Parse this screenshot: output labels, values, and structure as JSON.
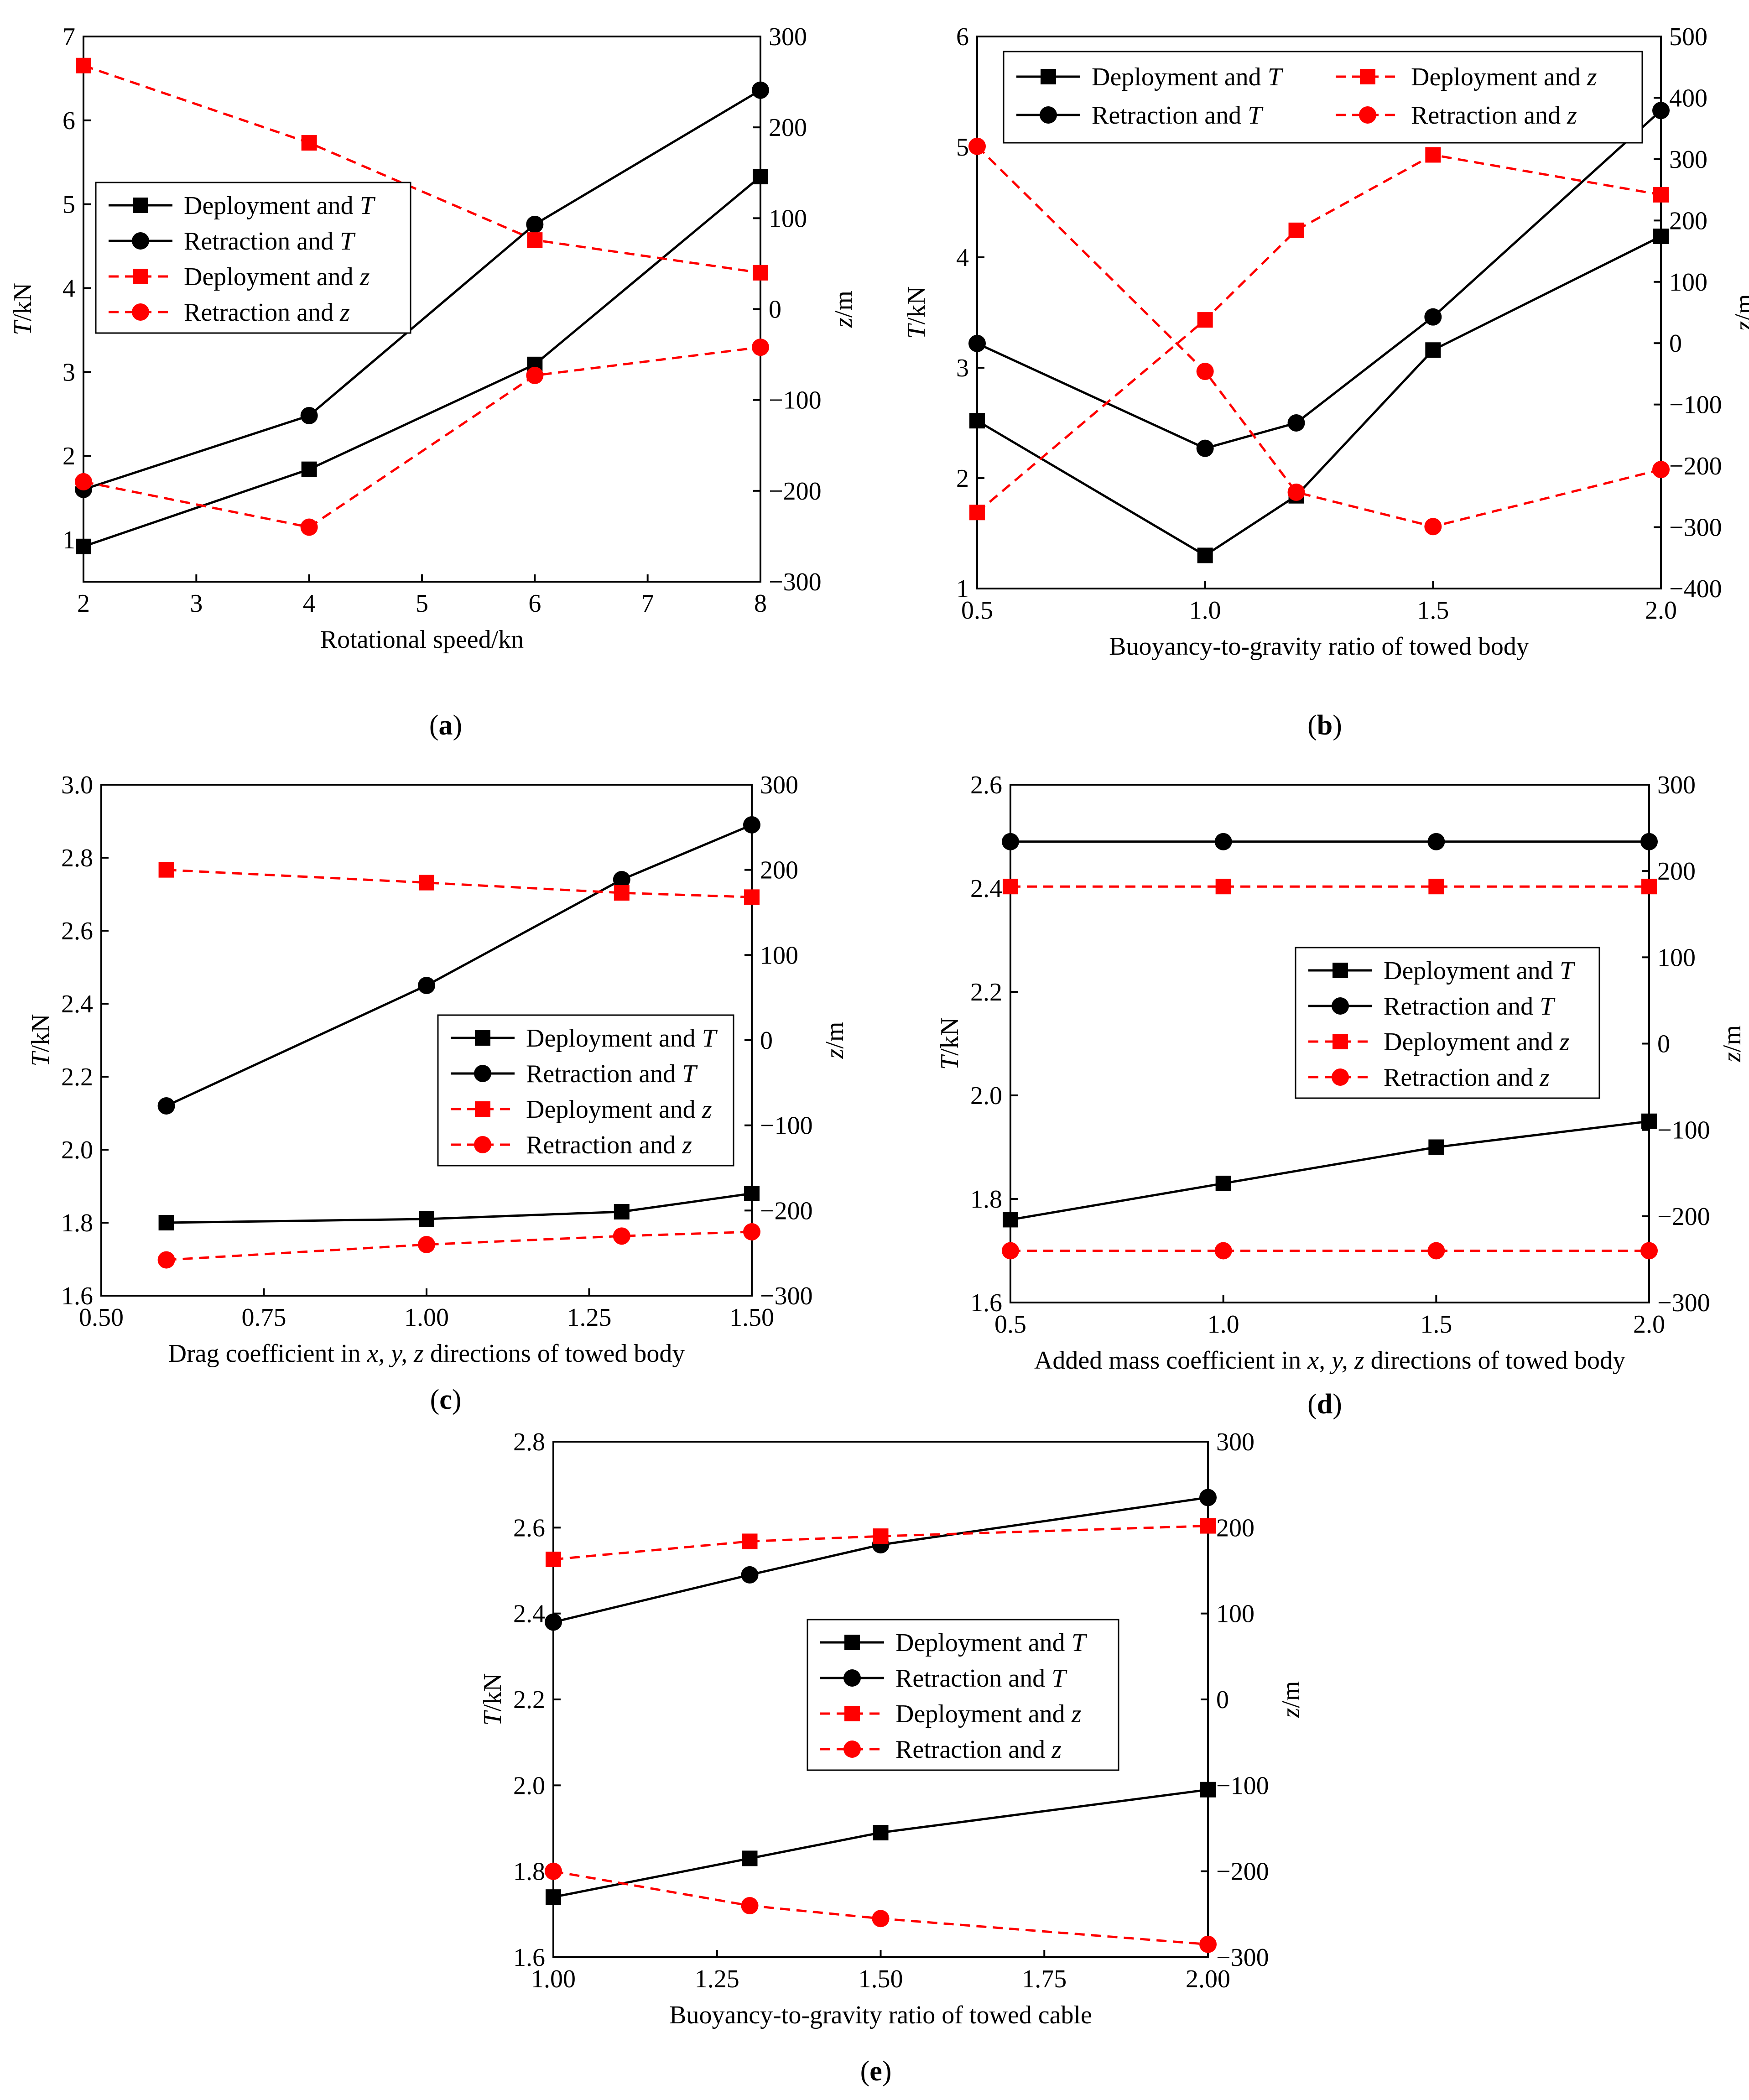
{
  "colors": {
    "black": "#000000",
    "red": "#ff0000"
  },
  "legend_entries": [
    {
      "prefix": "Deployment and ",
      "var": "T",
      "color": "#000000",
      "dash": false,
      "marker": "square"
    },
    {
      "prefix": "Retraction and ",
      "var": "T",
      "color": "#000000",
      "dash": false,
      "marker": "circle"
    },
    {
      "prefix": "Deployment and ",
      "var": "z",
      "color": "#ff0000",
      "dash": true,
      "marker": "square"
    },
    {
      "prefix": "Retraction and ",
      "var": "z",
      "color": "#ff0000",
      "dash": true,
      "marker": "circle"
    }
  ],
  "chart_data": [
    {
      "panel": "a",
      "caption_open": "(",
      "caption_letter": "a",
      "caption_close": ")",
      "type": "line",
      "xlabel": "Rotational speed/kn",
      "ylabel_left_italic": "T",
      "ylabel_left_rest": "/kN",
      "ylabel_right_italic": "z",
      "ylabel_right_rest": "/m",
      "xlim": [
        2,
        8
      ],
      "xticks": [
        2,
        3,
        4,
        5,
        6,
        7,
        8
      ],
      "xtick_labels": [
        "2",
        "3",
        "4",
        "5",
        "6",
        "7",
        "8"
      ],
      "ylim_left": [
        0.5,
        7
      ],
      "yticks_left": [
        1,
        2,
        3,
        4,
        5,
        6,
        7
      ],
      "ytick_labels_left": [
        "1",
        "2",
        "3",
        "4",
        "5",
        "6",
        "7"
      ],
      "ylim_right": [
        -300,
        300
      ],
      "yticks_right": [
        -300,
        -200,
        -100,
        0,
        100,
        200,
        300
      ],
      "ytick_labels_right": [
        "−300",
        "−200",
        "−100",
        "0",
        "100",
        "200",
        "300"
      ],
      "x": [
        2,
        4,
        6,
        8
      ],
      "series": [
        {
          "name": "Deployment and T",
          "axis": "left",
          "values": [
            0.92,
            1.84,
            3.09,
            5.33
          ]
        },
        {
          "name": "Retraction and T",
          "axis": "left",
          "values": [
            1.6,
            2.48,
            4.76,
            6.36
          ]
        },
        {
          "name": "Deployment and z",
          "axis": "right",
          "values": [
            268,
            183,
            76,
            40
          ]
        },
        {
          "name": "Retraction and z",
          "axis": "right",
          "values": [
            -190,
            -240,
            -73,
            -42
          ]
        }
      ],
      "legend_position": "middle-left"
    },
    {
      "panel": "b",
      "caption_open": "(",
      "caption_letter": "b",
      "caption_close": ")",
      "type": "line",
      "xlabel": "Buoyancy-to-gravity ratio of towed body",
      "ylabel_left_italic": "T",
      "ylabel_left_rest": "/kN",
      "ylabel_right_italic": "z",
      "ylabel_right_rest": "/m",
      "xlim": [
        0.5,
        2.0
      ],
      "xticks": [
        0.5,
        1.0,
        1.5,
        2.0
      ],
      "xtick_labels": [
        "0.5",
        "1.0",
        "1.5",
        "2.0"
      ],
      "ylim_left": [
        1,
        6
      ],
      "yticks_left": [
        1,
        2,
        3,
        4,
        5,
        6
      ],
      "ytick_labels_left": [
        "1",
        "2",
        "3",
        "4",
        "5",
        "6"
      ],
      "ylim_right": [
        -400,
        500
      ],
      "yticks_right": [
        -400,
        -300,
        -200,
        -100,
        0,
        100,
        200,
        300,
        400,
        500
      ],
      "ytick_labels_right": [
        "−400",
        "−300",
        "−200",
        "−100",
        "0",
        "100",
        "200",
        "300",
        "400",
        "500"
      ],
      "x": [
        0.5,
        1.0,
        1.2,
        1.5,
        2.0
      ],
      "series": [
        {
          "name": "Deployment and T",
          "axis": "left",
          "values": [
            2.52,
            1.3,
            1.84,
            3.16,
            4.19
          ]
        },
        {
          "name": "Retraction and T",
          "axis": "left",
          "values": [
            3.22,
            2.27,
            2.5,
            3.46,
            5.33
          ]
        },
        {
          "name": "Deployment and z",
          "axis": "right",
          "values": [
            -276,
            38,
            184,
            307,
            242
          ]
        },
        {
          "name": "Retraction and z",
          "axis": "right",
          "values": [
            321,
            -46,
            -243,
            -299,
            -206
          ]
        }
      ],
      "legend_position": "top-right"
    },
    {
      "panel": "c",
      "caption_open": "(",
      "caption_letter": "c",
      "caption_close": ")",
      "type": "line",
      "xlabel_prefix": "Drag coefficient in ",
      "xlabel_italic": "x, y, z",
      "xlabel_suffix": " directions of towed body",
      "ylabel_left_italic": "T",
      "ylabel_left_rest": "/kN",
      "ylabel_right_italic": "z",
      "ylabel_right_rest": "/m",
      "xlim": [
        0.5,
        1.5
      ],
      "xticks": [
        0.5,
        0.75,
        1.0,
        1.25,
        1.5
      ],
      "xtick_labels": [
        "0.50",
        "0.75",
        "1.00",
        "1.25",
        "1.50"
      ],
      "ylim_left": [
        1.6,
        3.0
      ],
      "yticks_left": [
        1.6,
        1.8,
        2.0,
        2.2,
        2.4,
        2.6,
        2.8,
        3.0
      ],
      "ytick_labels_left": [
        "1.6",
        "1.8",
        "2.0",
        "2.2",
        "2.4",
        "2.6",
        "2.8",
        "3.0"
      ],
      "ylim_right": [
        -300,
        300
      ],
      "yticks_right": [
        -300,
        -200,
        -100,
        0,
        100,
        200,
        300
      ],
      "ytick_labels_right": [
        "−300",
        "−200",
        "−100",
        "0",
        "100",
        "200",
        "300"
      ],
      "x": [
        0.6,
        1.0,
        1.3,
        1.5
      ],
      "series": [
        {
          "name": "Deployment and T",
          "axis": "left",
          "values": [
            1.8,
            1.81,
            1.83,
            1.88
          ]
        },
        {
          "name": "Retraction and T",
          "axis": "left",
          "values": [
            2.12,
            2.45,
            2.74,
            2.89
          ]
        },
        {
          "name": "Deployment and z",
          "axis": "right",
          "values": [
            200,
            185,
            173,
            168
          ]
        },
        {
          "name": "Retraction and z",
          "axis": "right",
          "values": [
            -258,
            -240,
            -230,
            -225
          ]
        }
      ],
      "legend_position": "center-right"
    },
    {
      "panel": "d",
      "caption_open": "(",
      "caption_letter": "d",
      "caption_close": ")",
      "type": "line",
      "xlabel_prefix": "Added mass coefficient in ",
      "xlabel_italic": "x, y, z",
      "xlabel_suffix": " directions of towed body",
      "ylabel_left_italic": "T",
      "ylabel_left_rest": "/kN",
      "ylabel_right_italic": "z",
      "ylabel_right_rest": "/m",
      "xlim": [
        0.5,
        2.0
      ],
      "xticks": [
        0.5,
        1.0,
        1.5,
        2.0
      ],
      "xtick_labels": [
        "0.5",
        "1.0",
        "1.5",
        "2.0"
      ],
      "ylim_left": [
        1.6,
        2.6
      ],
      "yticks_left": [
        1.6,
        1.8,
        2.0,
        2.2,
        2.4,
        2.6
      ],
      "ytick_labels_left": [
        "1.6",
        "1.8",
        "2.0",
        "2.2",
        "2.4",
        "2.6"
      ],
      "ylim_right": [
        -300,
        300
      ],
      "yticks_right": [
        -300,
        -200,
        -100,
        0,
        100,
        200,
        300
      ],
      "ytick_labels_right": [
        "−300",
        "−200",
        "−100",
        "0",
        "100",
        "200",
        "300"
      ],
      "x": [
        0.5,
        1.0,
        1.5,
        2.0
      ],
      "series": [
        {
          "name": "Deployment and T",
          "axis": "left",
          "values": [
            1.76,
            1.83,
            1.9,
            1.95
          ]
        },
        {
          "name": "Retraction and T",
          "axis": "left",
          "values": [
            2.49,
            2.49,
            2.49,
            2.49
          ]
        },
        {
          "name": "Deployment and z",
          "axis": "right",
          "values": [
            182,
            182,
            182,
            182
          ]
        },
        {
          "name": "Retraction and z",
          "axis": "right",
          "values": [
            -240,
            -240,
            -240,
            -240
          ]
        }
      ],
      "legend_position": "center-right"
    },
    {
      "panel": "e",
      "caption_open": "(",
      "caption_letter": "e",
      "caption_close": ")",
      "type": "line",
      "xlabel": "Buoyancy-to-gravity ratio of towed cable",
      "ylabel_left_italic": "T",
      "ylabel_left_rest": "/kN",
      "ylabel_right_italic": "z",
      "ylabel_right_rest": "/m",
      "xlim": [
        1.0,
        2.0
      ],
      "xticks": [
        1.0,
        1.25,
        1.5,
        1.75,
        2.0
      ],
      "xtick_labels": [
        "1.00",
        "1.25",
        "1.50",
        "1.75",
        "2.00"
      ],
      "ylim_left": [
        1.6,
        2.8
      ],
      "yticks_left": [
        1.6,
        1.8,
        2.0,
        2.2,
        2.4,
        2.6,
        2.8
      ],
      "ytick_labels_left": [
        "1.6",
        "1.8",
        "2.0",
        "2.2",
        "2.4",
        "2.6",
        "2.8"
      ],
      "ylim_right": [
        -300,
        300
      ],
      "yticks_right": [
        -300,
        -200,
        -100,
        0,
        100,
        200,
        300
      ],
      "ytick_labels_right": [
        "−300",
        "−200",
        "−100",
        "0",
        "100",
        "200",
        "300"
      ],
      "x": [
        1.0,
        1.3,
        1.5,
        2.0
      ],
      "series": [
        {
          "name": "Deployment and T",
          "axis": "left",
          "values": [
            1.74,
            1.83,
            1.89,
            1.99
          ]
        },
        {
          "name": "Retraction and T",
          "axis": "left",
          "values": [
            2.38,
            2.49,
            2.56,
            2.67
          ]
        },
        {
          "name": "Deployment and z",
          "axis": "right",
          "values": [
            163,
            184,
            190,
            202
          ]
        },
        {
          "name": "Retraction and z",
          "axis": "right",
          "values": [
            -200,
            -240,
            -255,
            -285
          ]
        }
      ],
      "legend_position": "center-right"
    }
  ]
}
